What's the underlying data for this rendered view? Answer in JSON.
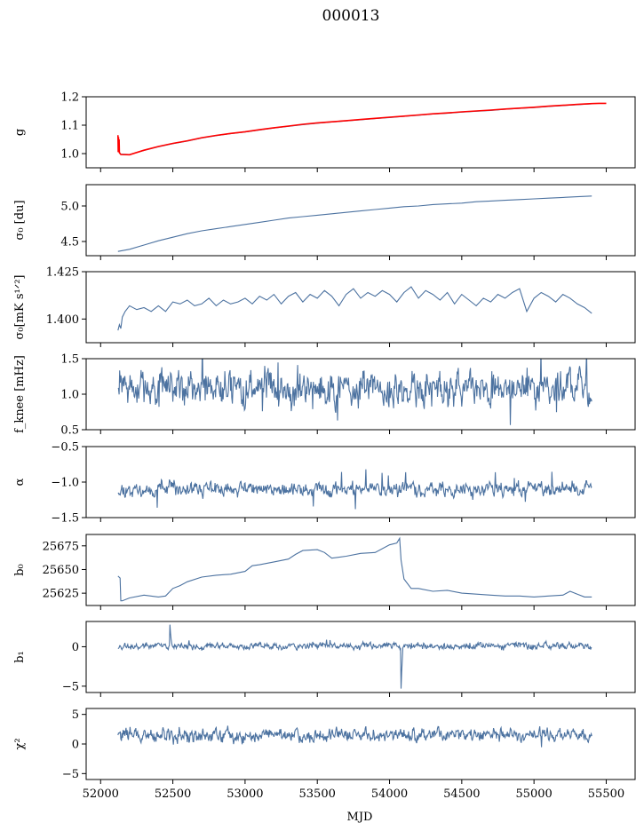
{
  "figure": {
    "title": "000013",
    "xlabel": "MJD"
  },
  "chart_data": {
    "type": "line",
    "title": "000013",
    "x_axis": {
      "label": "MJD",
      "range": [
        51900,
        55700
      ],
      "ticks": [
        52000,
        52500,
        53000,
        53500,
        54000,
        54500,
        55000,
        55500
      ],
      "tick_labels": [
        "52000",
        "52500",
        "53000",
        "53500",
        "54000",
        "54500",
        "55000",
        "55500"
      ]
    },
    "line_color": "#4c72a0",
    "overlay_color": "#ff0000",
    "panels": [
      {
        "id": "g",
        "ylabel": "g",
        "ylim": [
          0.95,
          1.2
        ],
        "yticks": [
          1.0,
          1.1,
          1.2
        ],
        "ytick_labels": [
          "1.0",
          "1.1",
          "1.2"
        ],
        "series": [
          {
            "kind": "main",
            "x": [
              52120,
              52140,
              52200,
              52300,
              52400,
              52500,
              52600,
              52700,
              52800,
              52900,
              53000,
              53100,
              53200,
              53300,
              53400,
              53500,
              53600,
              53700,
              53800,
              53900,
              54000,
              54100,
              54200,
              54300,
              54400,
              54500,
              54600,
              54700,
              54800,
              54900,
              55000,
              55100,
              55200,
              55300,
              55400
            ],
            "y": [
              1.01,
              0.998,
              0.997,
              1.011,
              1.024,
              1.035,
              1.044,
              1.055,
              1.063,
              1.07,
              1.076,
              1.083,
              1.09,
              1.096,
              1.102,
              1.107,
              1.111,
              1.115,
              1.119,
              1.123,
              1.127,
              1.131,
              1.135,
              1.139,
              1.142,
              1.146,
              1.149,
              1.152,
              1.156,
              1.159,
              1.162,
              1.166,
              1.169,
              1.172,
              1.175
            ]
          },
          {
            "kind": "overlay",
            "x": [
              52120,
              52122,
              52124,
              52126,
              52128,
              52130,
              52140,
              52200,
              52300,
              52400,
              52500,
              52600,
              52700,
              52800,
              52900,
              53000,
              53100,
              53200,
              53300,
              53400,
              53500,
              53600,
              53700,
              53800,
              53900,
              54000,
              54100,
              54200,
              54300,
              54400,
              54500,
              54600,
              54700,
              54800,
              54900,
              55000,
              55100,
              55200,
              55300,
              55400,
              55450,
              55500
            ],
            "y": [
              1.065,
              1.005,
              1.058,
              1.01,
              1.05,
              1.003,
              0.997,
              0.996,
              1.012,
              1.025,
              1.036,
              1.045,
              1.056,
              1.064,
              1.071,
              1.077,
              1.084,
              1.091,
              1.097,
              1.103,
              1.108,
              1.112,
              1.116,
              1.12,
              1.124,
              1.128,
              1.132,
              1.136,
              1.14,
              1.143,
              1.147,
              1.15,
              1.153,
              1.157,
              1.16,
              1.163,
              1.167,
              1.17,
              1.173,
              1.176,
              1.177,
              1.177
            ]
          }
        ]
      },
      {
        "id": "sigma0-du",
        "ylabel": "σ₀ [du]",
        "ylim": [
          4.3,
          5.3
        ],
        "yticks": [
          4.5,
          5.0
        ],
        "ytick_labels": [
          "4.5",
          "5.0"
        ],
        "series": [
          {
            "kind": "main",
            "x": [
              52120,
              52200,
              52300,
              52400,
              52500,
              52600,
              52700,
              52800,
              52900,
              53000,
              53100,
              53200,
              53300,
              53400,
              53500,
              53600,
              53700,
              53800,
              53900,
              54000,
              54100,
              54200,
              54300,
              54400,
              54500,
              54600,
              54700,
              54800,
              54900,
              55000,
              55100,
              55200,
              55300,
              55400
            ],
            "y": [
              4.36,
              4.39,
              4.45,
              4.51,
              4.56,
              4.61,
              4.65,
              4.68,
              4.71,
              4.74,
              4.77,
              4.8,
              4.83,
              4.85,
              4.87,
              4.89,
              4.91,
              4.93,
              4.95,
              4.97,
              4.99,
              5.0,
              5.02,
              5.03,
              5.04,
              5.06,
              5.07,
              5.08,
              5.09,
              5.1,
              5.11,
              5.12,
              5.13,
              5.14
            ]
          }
        ]
      },
      {
        "id": "sigma0-mks",
        "ylabel": "σ₀[mK s¹ᐟ²]",
        "ylim": [
          1.3875,
          1.425
        ],
        "yticks": [
          1.4,
          1.425
        ],
        "ytick_labels": [
          "1.400",
          "1.425"
        ],
        "series": [
          {
            "kind": "main",
            "x": [
              52120,
              52130,
              52140,
              52150,
              52170,
              52200,
              52250,
              52300,
              52350,
              52400,
              52450,
              52500,
              52550,
              52600,
              52650,
              52700,
              52750,
              52800,
              52850,
              52900,
              52950,
              53000,
              53050,
              53100,
              53150,
              53200,
              53250,
              53300,
              53350,
              53400,
              53450,
              53500,
              53550,
              53600,
              53650,
              53700,
              53750,
              53800,
              53850,
              53900,
              53950,
              54000,
              54050,
              54100,
              54150,
              54200,
              54250,
              54300,
              54350,
              54400,
              54450,
              54500,
              54550,
              54600,
              54650,
              54700,
              54750,
              54800,
              54850,
              54900,
              54950,
              55000,
              55050,
              55100,
              55150,
              55200,
              55250,
              55300,
              55350,
              55400
            ],
            "y": [
              1.394,
              1.397,
              1.395,
              1.401,
              1.404,
              1.407,
              1.405,
              1.406,
              1.404,
              1.407,
              1.404,
              1.409,
              1.408,
              1.41,
              1.407,
              1.408,
              1.411,
              1.407,
              1.41,
              1.408,
              1.409,
              1.411,
              1.408,
              1.412,
              1.41,
              1.413,
              1.408,
              1.412,
              1.414,
              1.409,
              1.413,
              1.411,
              1.415,
              1.412,
              1.407,
              1.413,
              1.416,
              1.411,
              1.414,
              1.412,
              1.415,
              1.413,
              1.409,
              1.414,
              1.417,
              1.411,
              1.415,
              1.413,
              1.41,
              1.414,
              1.408,
              1.413,
              1.41,
              1.407,
              1.411,
              1.409,
              1.413,
              1.411,
              1.414,
              1.416,
              1.404,
              1.411,
              1.414,
              1.412,
              1.409,
              1.413,
              1.411,
              1.408,
              1.406,
              1.403
            ]
          }
        ]
      },
      {
        "id": "fknee",
        "ylabel": "f_knee [mHz]",
        "ylim": [
          0.5,
          1.5
        ],
        "yticks": [
          0.5,
          1.0,
          1.5
        ],
        "ytick_labels": [
          "0.5",
          "1.0",
          "1.5"
        ],
        "series": [
          {
            "kind": "main",
            "noise": {
              "base": 1.08,
              "amp": 0.2,
              "spike": 0.4,
              "seed": 7
            }
          }
        ]
      },
      {
        "id": "alpha",
        "ylabel": "α",
        "ylim": [
          -1.5,
          -0.5
        ],
        "yticks": [
          -1.5,
          -1.0,
          -0.5
        ],
        "ytick_labels": [
          "−1.5",
          "−1.0",
          "−0.5"
        ],
        "series": [
          {
            "kind": "main",
            "noise": {
              "base": -1.1,
              "amp": 0.08,
              "spike": 0.3,
              "seed": 11
            }
          }
        ]
      },
      {
        "id": "b0",
        "ylabel": "b₀",
        "ylim": [
          25612,
          25687
        ],
        "yticks": [
          25625,
          25650,
          25675
        ],
        "ytick_labels": [
          "25625",
          "25650",
          "25675"
        ],
        "series": [
          {
            "kind": "main",
            "x": [
              52120,
              52135,
              52140,
              52150,
              52200,
              52300,
              52400,
              52450,
              52500,
              52550,
              52600,
              52700,
              52800,
              52900,
              53000,
              53050,
              53100,
              53200,
              53300,
              53350,
              53400,
              53500,
              53550,
              53600,
              53700,
              53800,
              53900,
              54000,
              54050,
              54070,
              54080,
              54100,
              54150,
              54200,
              54300,
              54400,
              54500,
              54600,
              54700,
              54800,
              54900,
              55000,
              55100,
              55200,
              55250,
              55300,
              55350,
              55400
            ],
            "y": [
              25643,
              25641,
              25617,
              25617,
              25620,
              25623,
              25621,
              25622,
              25630,
              25633,
              25637,
              25642,
              25644,
              25645,
              25648,
              25654,
              25655,
              25658,
              25661,
              25666,
              25670,
              25671,
              25668,
              25662,
              25664,
              25667,
              25668,
              25676,
              25678,
              25683,
              25660,
              25640,
              25630,
              25630,
              25627,
              25628,
              25625,
              25624,
              25623,
              25622,
              25622,
              25621,
              25622,
              25623,
              25627,
              25624,
              25621,
              25621
            ]
          }
        ]
      },
      {
        "id": "b1",
        "ylabel": "b₁",
        "ylim": [
          -5.8,
          3.2
        ],
        "yticks": [
          -5,
          0
        ],
        "ytick_labels": [
          "−5",
          "0"
        ],
        "series": [
          {
            "kind": "main",
            "noise": {
              "base": 0.1,
              "amp": 0.35,
              "spike": 0.6,
              "seed": 19,
              "events": [
                {
                  "x": 52480,
                  "y": 2.8
                },
                {
                  "x": 54080,
                  "y": -5.3
                }
              ]
            }
          }
        ]
      },
      {
        "id": "chi2",
        "ylabel": "χ²",
        "ylim": [
          -6,
          6
        ],
        "yticks": [
          -5,
          0,
          5
        ],
        "ytick_labels": [
          "−5",
          "0",
          "5"
        ],
        "series": [
          {
            "kind": "main",
            "noise": {
              "base": 1.5,
              "amp": 0.9,
              "spike": 1.2,
              "seed": 29
            }
          }
        ]
      }
    ]
  }
}
